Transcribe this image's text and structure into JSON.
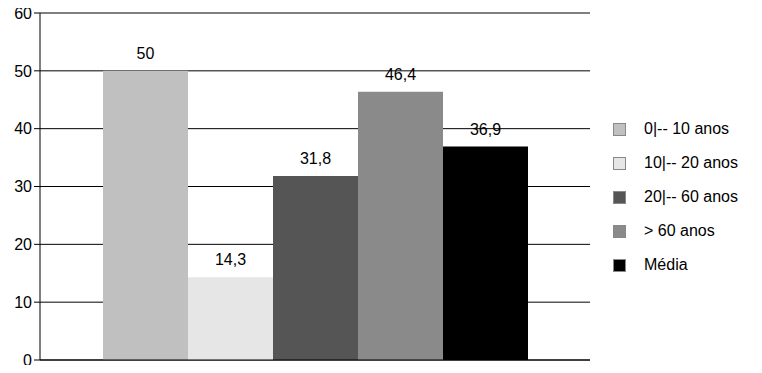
{
  "chart_data": {
    "type": "bar",
    "categories": [
      "0|-- 10 anos",
      "10|-- 20 anos",
      "20|-- 60 anos",
      "> 60 anos",
      "Média"
    ],
    "values": [
      50,
      14.3,
      31.8,
      46.4,
      36.9
    ],
    "value_labels": [
      "50",
      "14,3",
      "31,8",
      "46,4",
      "36,9"
    ],
    "colors": [
      "#c0c0c0",
      "#e6e6e6",
      "#555555",
      "#8a8a8a",
      "#000000"
    ],
    "ylim": [
      0,
      60
    ],
    "yticks": [
      0,
      10,
      20,
      30,
      40,
      50,
      60
    ],
    "grid": true,
    "legend": "right",
    "data_labels": true,
    "tick_labels": "y"
  }
}
